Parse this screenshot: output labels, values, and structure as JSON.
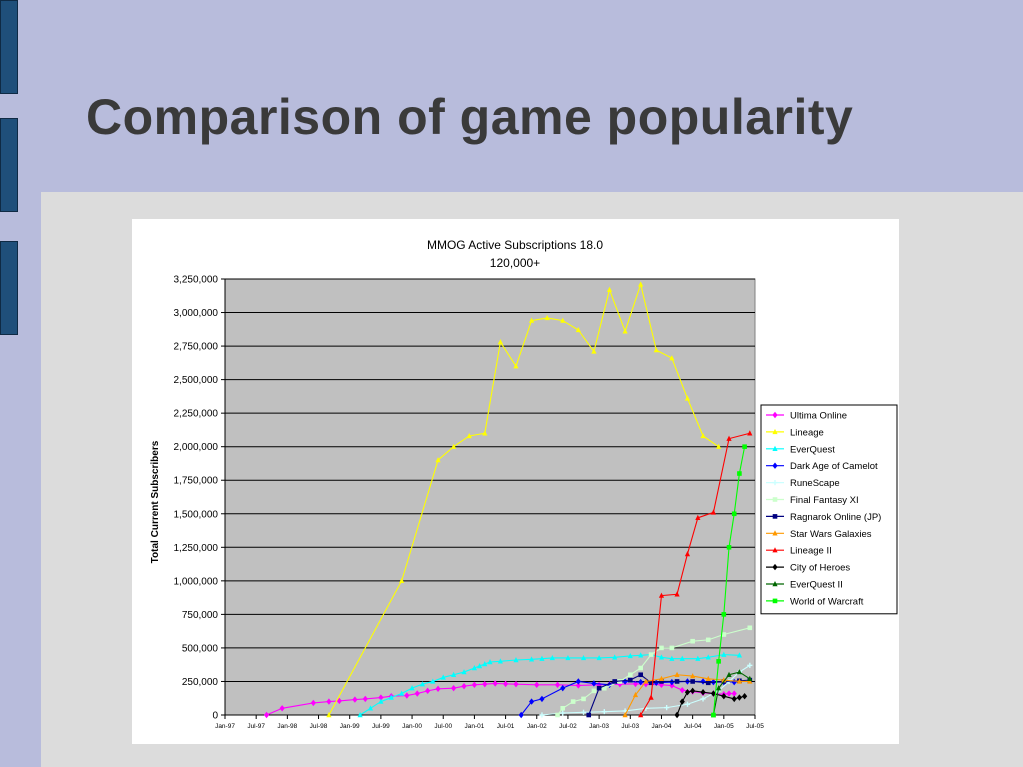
{
  "slide": {
    "title": "Comparison of game popularity"
  },
  "chart_data": {
    "type": "line",
    "title": "MMOG Active Subscriptions 18.0",
    "subtitle": "120,000+",
    "xlabel": "",
    "ylabel": "Total Current Subscribers",
    "ylim": [
      0,
      3250000
    ],
    "y_ticks": [
      0,
      250000,
      500000,
      750000,
      1000000,
      1250000,
      1500000,
      1750000,
      2000000,
      2250000,
      2500000,
      2750000,
      3000000,
      3250000
    ],
    "y_tick_labels": [
      "0",
      "250,000",
      "500,000",
      "750,000",
      "1,000,000",
      "1,250,000",
      "1,500,000",
      "1,750,000",
      "2,000,000",
      "2,250,000",
      "2,500,000",
      "2,750,000",
      "3,000,000",
      "3,250,000"
    ],
    "xlim": [
      "1997-01",
      "2005-07"
    ],
    "x_ticks": [
      "1997-01",
      "1997-07",
      "1998-01",
      "1998-07",
      "1999-01",
      "1999-07",
      "2000-01",
      "2000-07",
      "2001-01",
      "2001-07",
      "2002-01",
      "2002-07",
      "2003-01",
      "2003-07",
      "2004-01",
      "2004-07",
      "2005-01",
      "2005-07"
    ],
    "x_tick_labels": [
      "Jan-97",
      "Jul-97",
      "Jan-98",
      "Jul-98",
      "Jan-99",
      "Jul-99",
      "Jan-00",
      "Jul-00",
      "Jan-01",
      "Jul-01",
      "Jan-02",
      "Jul-02",
      "Jan-03",
      "Jul-03",
      "Jan-04",
      "Jul-04",
      "Jan-05",
      "Jul-05"
    ],
    "grid": true,
    "plot_background": "#c0c0c0",
    "legend_position": "right",
    "series": [
      {
        "name": "Ultima Online",
        "color": "#ff00ff",
        "marker": "diamond",
        "points": [
          [
            "1997-09",
            0
          ],
          [
            "1997-12",
            50000
          ],
          [
            "1998-06",
            90000
          ],
          [
            "1998-09",
            100000
          ],
          [
            "1998-11",
            105000
          ],
          [
            "1999-02",
            115000
          ],
          [
            "1999-04",
            120000
          ],
          [
            "1999-07",
            130000
          ],
          [
            "1999-09",
            140000
          ],
          [
            "1999-12",
            145000
          ],
          [
            "2000-02",
            160000
          ],
          [
            "2000-04",
            180000
          ],
          [
            "2000-06",
            195000
          ],
          [
            "2000-09",
            200000
          ],
          [
            "2000-11",
            215000
          ],
          [
            "2001-01",
            225000
          ],
          [
            "2001-03",
            230000
          ],
          [
            "2001-05",
            235000
          ],
          [
            "2001-07",
            232000
          ],
          [
            "2001-09",
            230000
          ],
          [
            "2002-01",
            225000
          ],
          [
            "2002-05",
            225000
          ],
          [
            "2002-09",
            220000
          ],
          [
            "2003-01",
            225000
          ],
          [
            "2003-03",
            228000
          ],
          [
            "2003-05",
            230000
          ],
          [
            "2003-08",
            232000
          ],
          [
            "2003-10",
            230000
          ],
          [
            "2004-01",
            225000
          ],
          [
            "2004-03",
            220000
          ],
          [
            "2004-05",
            185000
          ],
          [
            "2004-07",
            175000
          ],
          [
            "2004-09",
            165000
          ],
          [
            "2004-11",
            160000
          ],
          [
            "2005-01",
            155000
          ],
          [
            "2005-02",
            160000
          ],
          [
            "2005-03",
            160000
          ]
        ]
      },
      {
        "name": "Lineage",
        "color": "#ffff00",
        "marker": "triangle",
        "points": [
          [
            "1998-09",
            0
          ],
          [
            "1999-11",
            1000000
          ],
          [
            "2000-06",
            1900000
          ],
          [
            "2000-09",
            2000000
          ],
          [
            "2000-12",
            2080000
          ],
          [
            "2001-03",
            2100000
          ],
          [
            "2001-06",
            2780000
          ],
          [
            "2001-09",
            2600000
          ],
          [
            "2001-12",
            2940000
          ],
          [
            "2002-03",
            2960000
          ],
          [
            "2002-06",
            2940000
          ],
          [
            "2002-09",
            2870000
          ],
          [
            "2002-12",
            2710000
          ],
          [
            "2003-03",
            3170000
          ],
          [
            "2003-06",
            2860000
          ],
          [
            "2003-09",
            3210000
          ],
          [
            "2003-12",
            2720000
          ],
          [
            "2004-03",
            2660000
          ],
          [
            "2004-06",
            2360000
          ],
          [
            "2004-09",
            2080000
          ],
          [
            "2004-12",
            2000000
          ]
        ]
      },
      {
        "name": "EverQuest",
        "color": "#00ffff",
        "marker": "triangle",
        "points": [
          [
            "1999-03",
            0
          ],
          [
            "1999-05",
            50000
          ],
          [
            "1999-07",
            100000
          ],
          [
            "1999-09",
            130000
          ],
          [
            "1999-11",
            160000
          ],
          [
            "2000-01",
            200000
          ],
          [
            "2000-03",
            230000
          ],
          [
            "2000-05",
            250000
          ],
          [
            "2000-07",
            280000
          ],
          [
            "2000-09",
            300000
          ],
          [
            "2000-11",
            320000
          ],
          [
            "2001-01",
            350000
          ],
          [
            "2001-02",
            365000
          ],
          [
            "2001-03",
            380000
          ],
          [
            "2001-04",
            395000
          ],
          [
            "2001-06",
            400000
          ],
          [
            "2001-09",
            410000
          ],
          [
            "2001-12",
            415000
          ],
          [
            "2002-02",
            420000
          ],
          [
            "2002-04",
            425000
          ],
          [
            "2002-07",
            425000
          ],
          [
            "2002-10",
            425000
          ],
          [
            "2003-01",
            425000
          ],
          [
            "2003-04",
            430000
          ],
          [
            "2003-07",
            440000
          ],
          [
            "2003-09",
            445000
          ],
          [
            "2003-11",
            450000
          ],
          [
            "2004-01",
            430000
          ],
          [
            "2004-03",
            420000
          ],
          [
            "2004-05",
            420000
          ],
          [
            "2004-08",
            420000
          ],
          [
            "2004-10",
            430000
          ],
          [
            "2005-01",
            450000
          ],
          [
            "2005-04",
            445000
          ]
        ]
      },
      {
        "name": "Dark Age of Camelot",
        "color": "#0000ff",
        "marker": "diamond",
        "points": [
          [
            "2001-10",
            0
          ],
          [
            "2001-12",
            100000
          ],
          [
            "2002-02",
            120000
          ],
          [
            "2002-06",
            200000
          ],
          [
            "2002-09",
            250000
          ],
          [
            "2002-12",
            235000
          ],
          [
            "2003-03",
            225000
          ],
          [
            "2003-06",
            250000
          ],
          [
            "2003-09",
            245000
          ],
          [
            "2003-12",
            240000
          ],
          [
            "2004-03",
            245000
          ],
          [
            "2004-06",
            250000
          ],
          [
            "2004-09",
            250000
          ],
          [
            "2004-11",
            245000
          ],
          [
            "2005-01",
            245000
          ],
          [
            "2005-03",
            245000
          ]
        ]
      },
      {
        "name": "RuneScape",
        "color": "#ccffff",
        "marker": "cross",
        "points": [
          [
            "2002-02",
            0
          ],
          [
            "2002-06",
            15000
          ],
          [
            "2002-10",
            20000
          ],
          [
            "2003-02",
            25000
          ],
          [
            "2003-06",
            30000
          ],
          [
            "2003-10",
            50000
          ],
          [
            "2004-02",
            55000
          ],
          [
            "2004-06",
            80000
          ],
          [
            "2004-09",
            120000
          ],
          [
            "2004-12",
            180000
          ],
          [
            "2005-02",
            250000
          ],
          [
            "2005-04",
            320000
          ],
          [
            "2005-06",
            370000
          ]
        ]
      },
      {
        "name": "Final Fantasy XI",
        "color": "#ccffcc",
        "marker": "square",
        "points": [
          [
            "2002-05",
            0
          ],
          [
            "2002-06",
            50000
          ],
          [
            "2002-08",
            100000
          ],
          [
            "2002-10",
            120000
          ],
          [
            "2002-12",
            180000
          ],
          [
            "2003-02",
            200000
          ],
          [
            "2003-05",
            250000
          ],
          [
            "2003-07",
            300000
          ],
          [
            "2003-09",
            350000
          ],
          [
            "2003-11",
            450000
          ],
          [
            "2004-01",
            500000
          ],
          [
            "2004-03",
            500000
          ],
          [
            "2004-07",
            550000
          ],
          [
            "2004-10",
            560000
          ],
          [
            "2005-01",
            600000
          ],
          [
            "2005-06",
            650000
          ]
        ]
      },
      {
        "name": "Ragnarok Online (JP)",
        "color": "#000080",
        "marker": "square",
        "points": [
          [
            "2002-11",
            0
          ],
          [
            "2003-01",
            200000
          ],
          [
            "2003-04",
            250000
          ],
          [
            "2003-07",
            260000
          ],
          [
            "2003-09",
            300000
          ],
          [
            "2003-11",
            240000
          ],
          [
            "2004-01",
            250000
          ],
          [
            "2004-04",
            250000
          ],
          [
            "2004-07",
            250000
          ],
          [
            "2004-10",
            240000
          ],
          [
            "2005-01",
            250000
          ],
          [
            "2005-04",
            255000
          ],
          [
            "2005-06",
            260000
          ]
        ]
      },
      {
        "name": "Star Wars Galaxies",
        "color": "#ff9900",
        "marker": "triangle",
        "points": [
          [
            "2003-06",
            0
          ],
          [
            "2003-08",
            150000
          ],
          [
            "2003-10",
            250000
          ],
          [
            "2004-01",
            270000
          ],
          [
            "2004-04",
            300000
          ],
          [
            "2004-07",
            290000
          ],
          [
            "2004-10",
            270000
          ],
          [
            "2005-01",
            260000
          ],
          [
            "2005-04",
            250000
          ],
          [
            "2005-06",
            250000
          ]
        ]
      },
      {
        "name": "Lineage II",
        "color": "#ff0000",
        "marker": "triangle",
        "points": [
          [
            "2003-09",
            0
          ],
          [
            "2003-11",
            130000
          ],
          [
            "2004-01",
            890000
          ],
          [
            "2004-04",
            900000
          ],
          [
            "2004-06",
            1200000
          ],
          [
            "2004-08",
            1470000
          ],
          [
            "2004-11",
            1510000
          ],
          [
            "2005-02",
            2060000
          ],
          [
            "2005-06",
            2100000
          ]
        ]
      },
      {
        "name": "City of Heroes",
        "color": "#000000",
        "marker": "diamond",
        "points": [
          [
            "2004-04",
            0
          ],
          [
            "2004-05",
            100000
          ],
          [
            "2004-06",
            170000
          ],
          [
            "2004-07",
            180000
          ],
          [
            "2004-09",
            170000
          ],
          [
            "2004-11",
            160000
          ],
          [
            "2005-01",
            140000
          ],
          [
            "2005-03",
            120000
          ],
          [
            "2005-04",
            130000
          ],
          [
            "2005-05",
            140000
          ]
        ]
      },
      {
        "name": "EverQuest II",
        "color": "#006600",
        "marker": "triangle",
        "points": [
          [
            "2004-11",
            0
          ],
          [
            "2004-12",
            200000
          ],
          [
            "2005-02",
            300000
          ],
          [
            "2005-04",
            320000
          ],
          [
            "2005-06",
            270000
          ]
        ]
      },
      {
        "name": "World of Warcraft",
        "color": "#00ff00",
        "marker": "square",
        "points": [
          [
            "2004-11",
            0
          ],
          [
            "2004-12",
            400000
          ],
          [
            "2005-01",
            750000
          ],
          [
            "2005-02",
            1250000
          ],
          [
            "2005-03",
            1500000
          ],
          [
            "2005-04",
            1800000
          ],
          [
            "2005-05",
            2000000
          ]
        ]
      }
    ]
  }
}
